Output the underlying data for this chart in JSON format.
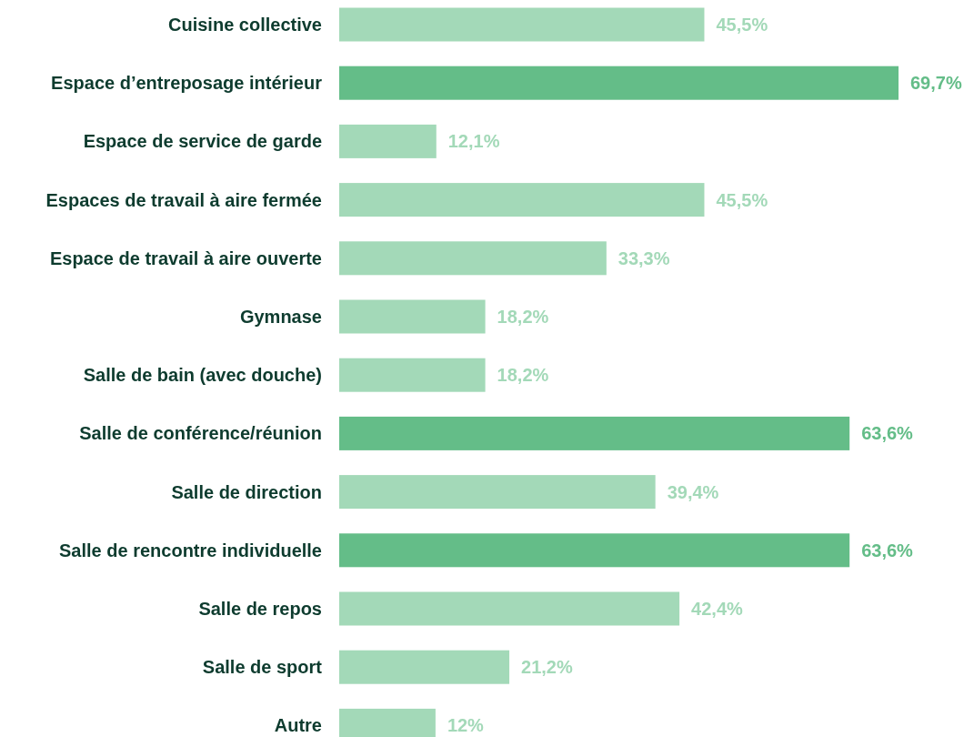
{
  "chart_data": {
    "type": "bar",
    "orientation": "horizontal",
    "categories": [
      "Cuisine collective",
      "Espace d’entreposage intérieur",
      "Espace de service de garde",
      "Espaces de travail à aire fermée",
      "Espace de travail à aire ouverte",
      "Gymnase",
      "Salle de bain (avec douche)",
      "Salle de conférence/réunion",
      "Salle de direction",
      "Salle de rencontre individuelle",
      "Salle de repos",
      "Salle de sport",
      "Autre"
    ],
    "values": [
      45.5,
      69.7,
      12.1,
      45.5,
      33.3,
      18.2,
      18.2,
      63.6,
      39.4,
      63.6,
      42.4,
      21.2,
      12
    ],
    "value_labels": [
      "45,5%",
      "69,7%",
      "12,1%",
      "45,5%",
      "33,3%",
      "18,2%",
      "18,2%",
      "63,6%",
      "39,4%",
      "63,6%",
      "42,4%",
      "21,2%",
      "12%"
    ],
    "colors": [
      "#a3d9b8",
      "#64bd88",
      "#a3d9b8",
      "#a3d9b8",
      "#a3d9b8",
      "#a3d9b8",
      "#a3d9b8",
      "#64bd88",
      "#a3d9b8",
      "#64bd88",
      "#a3d9b8",
      "#a3d9b8",
      "#a3d9b8"
    ]
  }
}
